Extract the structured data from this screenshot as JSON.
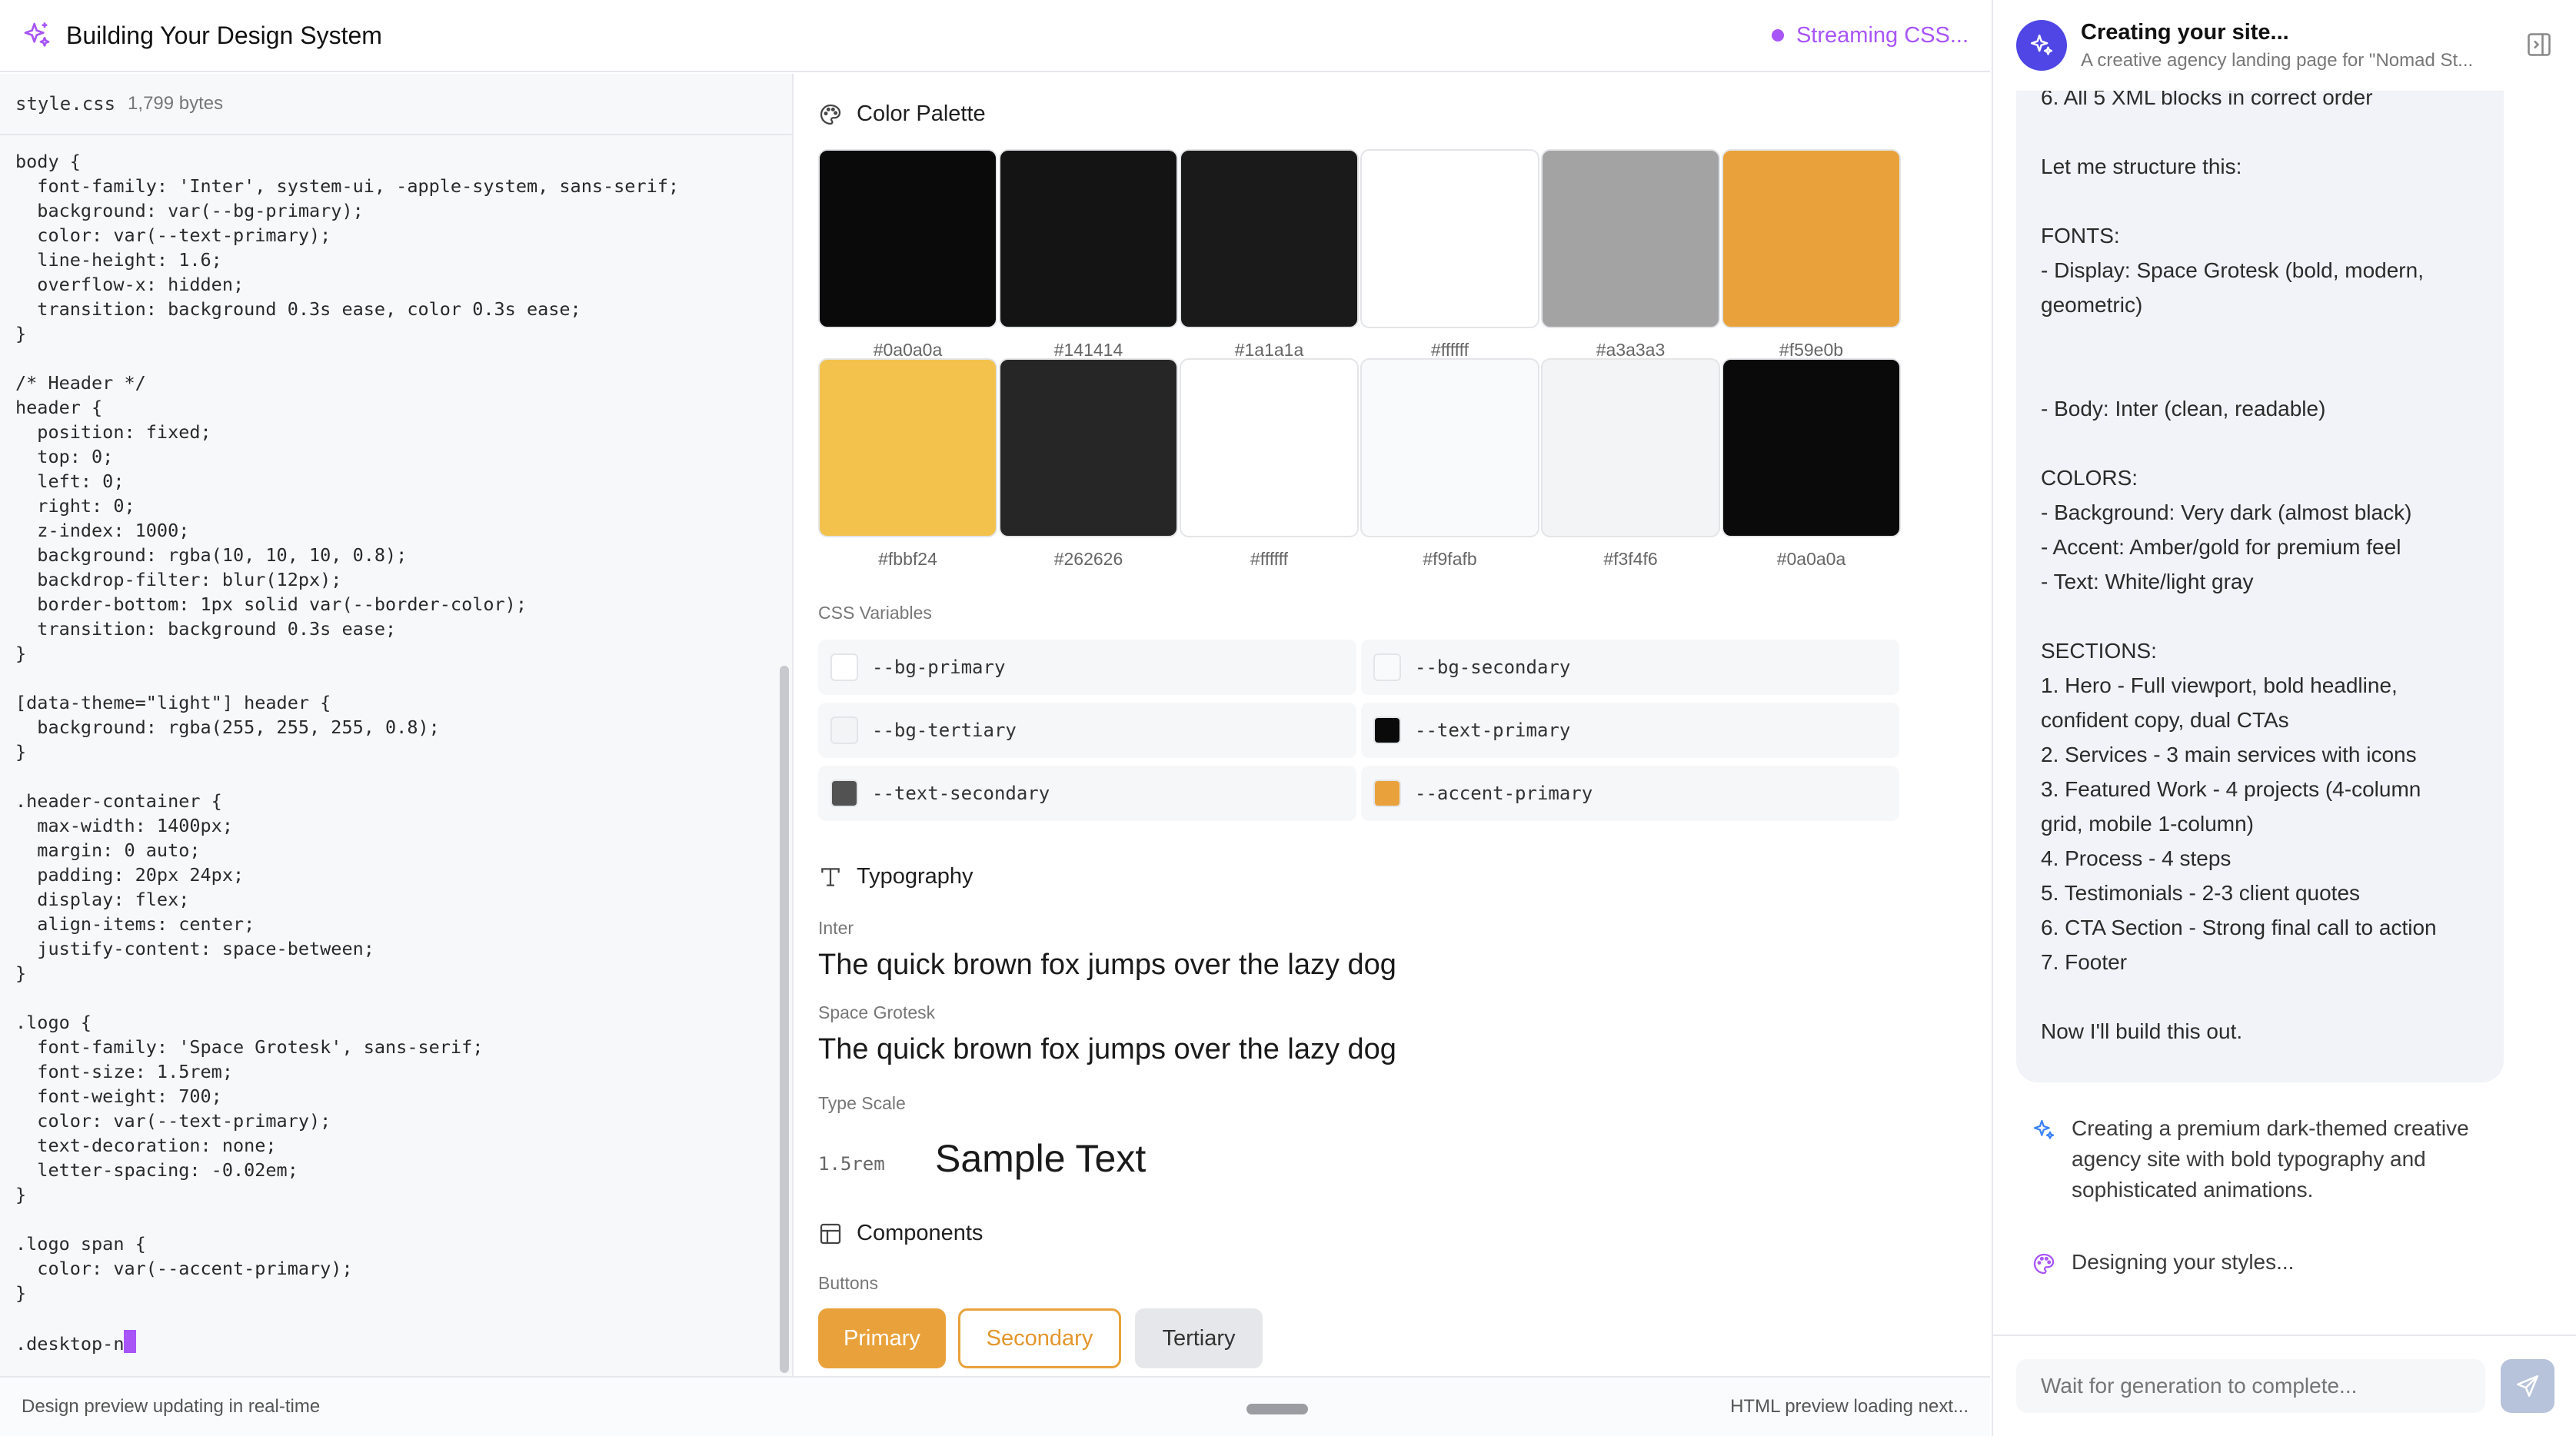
{
  "topbar": {
    "title": "Building Your Design System",
    "status": "Streaming CSS..."
  },
  "code_pane": {
    "filename": "style.css",
    "filesize": "1,799 bytes",
    "code": "body {\n  font-family: 'Inter', system-ui, -apple-system, sans-serif;\n  background: var(--bg-primary);\n  color: var(--text-primary);\n  line-height: 1.6;\n  overflow-x: hidden;\n  transition: background 0.3s ease, color 0.3s ease;\n}\n\n/* Header */\nheader {\n  position: fixed;\n  top: 0;\n  left: 0;\n  right: 0;\n  z-index: 1000;\n  background: rgba(10, 10, 10, 0.8);\n  backdrop-filter: blur(12px);\n  border-bottom: 1px solid var(--border-color);\n  transition: background 0.3s ease;\n}\n\n[data-theme=\"light\"] header {\n  background: rgba(255, 255, 255, 0.8);\n}\n\n.header-container {\n  max-width: 1400px;\n  margin: 0 auto;\n  padding: 20px 24px;\n  display: flex;\n  align-items: center;\n  justify-content: space-between;\n}\n\n.logo {\n  font-family: 'Space Grotesk', sans-serif;\n  font-size: 1.5rem;\n  font-weight: 700;\n  color: var(--text-primary);\n  text-decoration: none;\n  letter-spacing: -0.02em;\n}\n\n.logo span {\n  color: var(--accent-primary);\n}\n\n.desktop-n"
  },
  "design": {
    "color_palette_title": "Color Palette",
    "swatches": [
      {
        "hex": "#0a0a0a",
        "color": "#0a0a0a"
      },
      {
        "hex": "#141414",
        "color": "#141414"
      },
      {
        "hex": "#1a1a1a",
        "color": "#1a1a1a"
      },
      {
        "hex": "#ffffff",
        "color": "#ffffff"
      },
      {
        "hex": "#a3a3a3",
        "color": "#a3a3a3"
      },
      {
        "hex": "#f59e0b",
        "color": "#e9a23b"
      },
      {
        "hex": "#fbbf24",
        "color": "#f2c24d"
      },
      {
        "hex": "#262626",
        "color": "#262626"
      },
      {
        "hex": "#ffffff",
        "color": "#ffffff"
      },
      {
        "hex": "#f9fafb",
        "color": "#f9fafb"
      },
      {
        "hex": "#f3f4f6",
        "color": "#f3f4f6"
      },
      {
        "hex": "#0a0a0a",
        "color": "#0a0a0a"
      }
    ],
    "css_variables_label": "CSS Variables",
    "css_variables": [
      {
        "name": "--bg-primary",
        "color": "#ffffff"
      },
      {
        "name": "--bg-secondary",
        "color": "#f9fafb"
      },
      {
        "name": "--bg-tertiary",
        "color": "#f3f4f6"
      },
      {
        "name": "--text-primary",
        "color": "#0a0a0a"
      },
      {
        "name": "--text-secondary",
        "color": "#525252"
      },
      {
        "name": "--accent-primary",
        "color": "#e9a23b"
      }
    ],
    "typography_title": "Typography",
    "fonts": [
      {
        "name": "Inter",
        "sample": "The quick brown fox jumps over the lazy dog"
      },
      {
        "name": "Space Grotesk",
        "sample": "The quick brown fox jumps over the lazy dog"
      }
    ],
    "type_scale_label": "Type Scale",
    "type_scale": {
      "key": "1.5rem",
      "sample": "Sample Text"
    },
    "components_title": "Components",
    "buttons_label": "Buttons",
    "buttons": {
      "primary": "Primary",
      "secondary": "Secondary",
      "tertiary": "Tertiary"
    }
  },
  "footer": {
    "left": "Design preview updating in real-time",
    "right": "HTML preview loading next..."
  },
  "chat": {
    "title": "Creating your site...",
    "subtitle": "A creative agency landing page for \"Nomad St...",
    "bubble_lines": [
      "6. All 5 XML blocks in correct order",
      "",
      "Let me structure this:",
      "",
      "FONTS:",
      "- Display: Space Grotesk (bold, modern,",
      "geometric)",
      "",
      "",
      "- Body: Inter (clean, readable)",
      "",
      "COLORS:",
      "- Background: Very dark (almost black)",
      "- Accent: Amber/gold for premium feel",
      "- Text: White/light gray",
      "",
      "SECTIONS:",
      "1. Hero - Full viewport, bold headline,",
      "confident copy, dual CTAs",
      "2. Services - 3 main services with icons",
      "3. Featured Work - 4 projects (4-column",
      "grid, mobile 1-column)",
      "4. Process - 4 steps",
      "5. Testimonials - 2-3 client quotes",
      "6. CTA Section - Strong final call to action",
      "7. Footer",
      "",
      "Now I'll build this out."
    ],
    "status_message": "Creating a premium dark-themed creative agency site with bold typography and sophisticated animations.",
    "styles_message": "Designing your styles...",
    "input_placeholder": "Wait for generation to complete..."
  }
}
